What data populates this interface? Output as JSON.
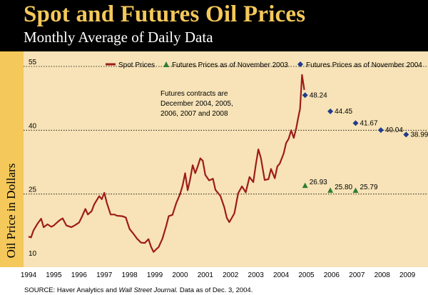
{
  "title": "Spot and Futures Oil Prices",
  "subtitle": "Monthly Average of Daily Data",
  "source": {
    "prefix": "SOURCE:  Haver Analytics and ",
    "journal": "Wall Street Journal.",
    "suffix": "  Data as of Dec. 3, 2004."
  },
  "colors": {
    "background": "#f7e3b7",
    "header": "#000000",
    "title": "#f4c85a",
    "spot": "#9e1b1b",
    "futures_2003": "#2e7d32",
    "futures_2004": "#1f3b8c"
  },
  "annotation": "Futures contracts are December 2004, 2005, 2006, 2007 and 2008",
  "chart_data": {
    "type": "line",
    "title": "Spot and Futures Oil Prices",
    "subtitle": "Monthly Average of Daily Data",
    "ylabel": "Oil Price in Dollars",
    "xlabel": "",
    "xlim": [
      1994,
      2010
    ],
    "ylim": [
      10,
      55
    ],
    "x_ticks": [
      1994,
      1995,
      1996,
      1997,
      1998,
      1999,
      2000,
      2001,
      2002,
      2003,
      2004,
      2005,
      2006,
      2007,
      2008,
      2009
    ],
    "y_ticks": [
      10,
      25,
      40,
      55
    ],
    "grid": "horizontal dotted at 25, 40, 55",
    "legend": {
      "position": "top",
      "entries": [
        "Spot Prices",
        "Futures Prices as of November 2003",
        "Futures Prices as of November 2004"
      ]
    },
    "series": [
      {
        "name": "Spot Prices",
        "style": "line",
        "x": [
          1994.0,
          1994.1,
          1994.2,
          1994.35,
          1994.5,
          1994.6,
          1994.75,
          1994.9,
          1995.0,
          1995.2,
          1995.35,
          1995.5,
          1995.7,
          1995.85,
          1996.0,
          1996.1,
          1996.25,
          1996.35,
          1996.5,
          1996.6,
          1996.8,
          1996.9,
          1997.0,
          1997.1,
          1997.25,
          1997.4,
          1997.5,
          1997.7,
          1997.85,
          1998.0,
          1998.15,
          1998.3,
          1998.45,
          1998.6,
          1998.75,
          1998.85,
          1998.95,
          1999.05,
          1999.15,
          1999.3,
          1999.45,
          1999.55,
          1999.7,
          1999.85,
          1999.95,
          2000.0,
          2000.1,
          2000.2,
          2000.3,
          2000.4,
          2000.5,
          2000.6,
          2000.7,
          2000.8,
          2000.9,
          2001.0,
          2001.15,
          2001.3,
          2001.4,
          2001.6,
          2001.75,
          2001.85,
          2001.95,
          2002.05,
          2002.15,
          2002.3,
          2002.45,
          2002.6,
          2002.75,
          2002.9,
          2003.0,
          2003.1,
          2003.2,
          2003.35,
          2003.5,
          2003.6,
          2003.75,
          2003.85,
          2003.95,
          2004.0,
          2004.1,
          2004.2,
          2004.3,
          2004.4,
          2004.5,
          2004.6,
          2004.68,
          2004.75,
          2004.83,
          2004.92
        ],
        "values": [
          15.0,
          14.8,
          16.5,
          18.0,
          19.2,
          17.2,
          17.9,
          17.3,
          17.6,
          18.7,
          19.3,
          17.6,
          17.2,
          17.7,
          18.3,
          19.5,
          21.5,
          20.2,
          21.0,
          22.6,
          24.5,
          23.8,
          25.3,
          22.9,
          20.2,
          20.2,
          19.9,
          19.8,
          19.5,
          16.8,
          15.7,
          14.5,
          13.6,
          13.5,
          14.4,
          12.6,
          11.4,
          12.0,
          12.5,
          14.5,
          17.5,
          19.8,
          20.1,
          22.9,
          24.3,
          25.0,
          27.0,
          29.9,
          25.9,
          28.5,
          31.8,
          29.9,
          31.5,
          33.4,
          32.8,
          29.5,
          28.2,
          28.6,
          26.0,
          24.5,
          21.9,
          19.4,
          18.4,
          19.4,
          20.5,
          25.2,
          26.8,
          25.4,
          29.0,
          27.8,
          32.0,
          35.5,
          33.5,
          28.3,
          28.5,
          30.9,
          28.7,
          31.5,
          32.2,
          33.0,
          34.5,
          37.0,
          38.0,
          40.0,
          38.2,
          40.5,
          43.0,
          45.0,
          53.0,
          49.5
        ]
      },
      {
        "name": "Futures Prices as of November 2003",
        "style": "triangle",
        "x": [
          2004.95,
          2005.95,
          2006.95
        ],
        "values": [
          26.93,
          25.8,
          25.79
        ],
        "labels": [
          "26.93",
          "25.80",
          "25.79"
        ]
      },
      {
        "name": "Futures Prices as of November 2004",
        "style": "diamond",
        "x": [
          2004.95,
          2005.95,
          2006.95,
          2007.95,
          2008.95
        ],
        "values": [
          48.24,
          44.45,
          41.67,
          40.04,
          38.99
        ],
        "labels": [
          "48.24",
          "44.45",
          "41.67",
          "40.04",
          "38.99"
        ]
      }
    ]
  }
}
